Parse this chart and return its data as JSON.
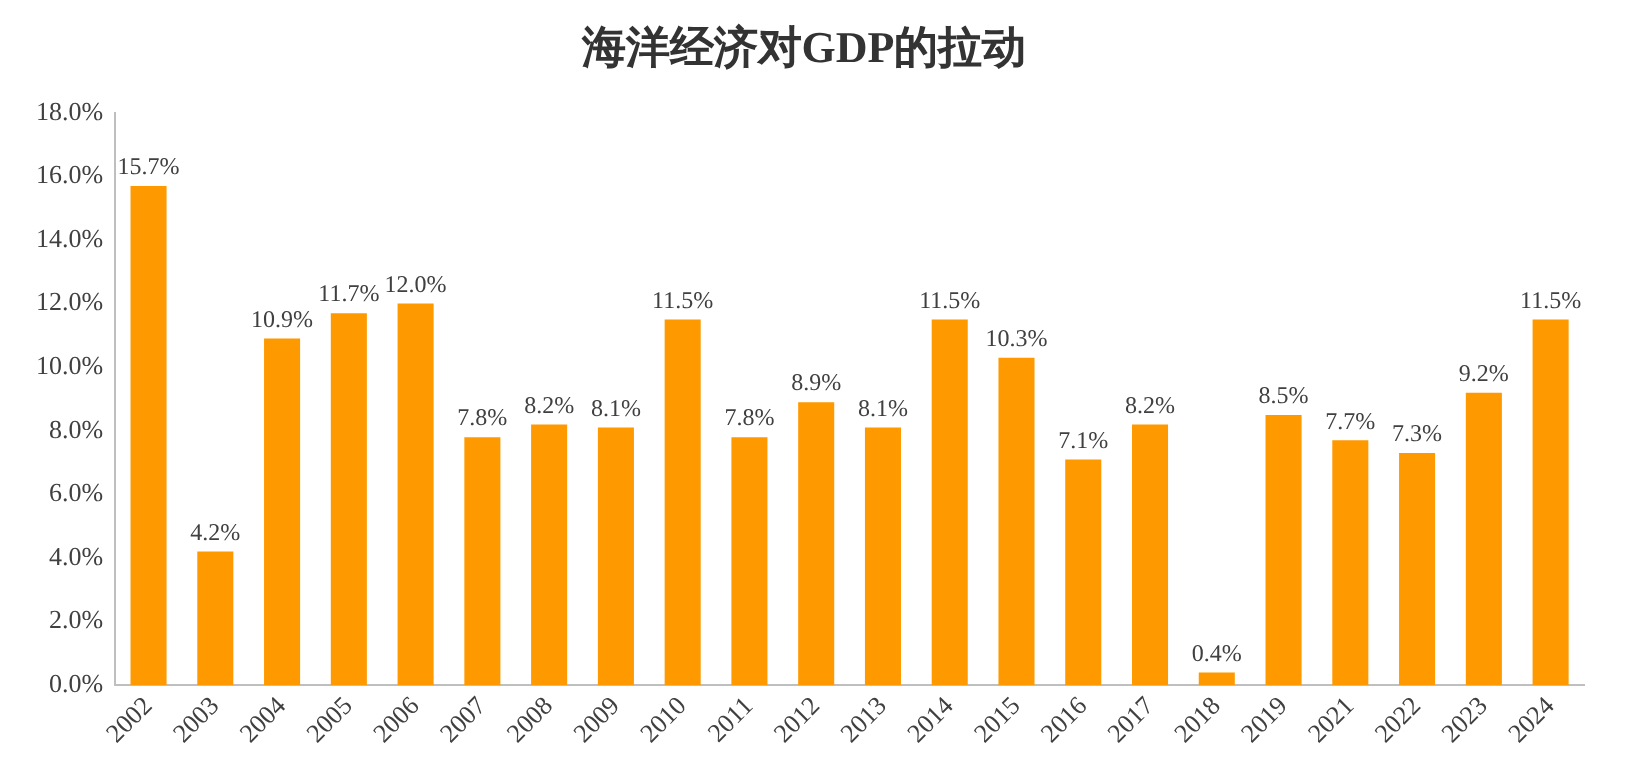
{
  "chart_data": {
    "type": "bar",
    "title": "海洋经济对GDP的拉动",
    "categories": [
      "2002",
      "2003",
      "2004",
      "2005",
      "2006",
      "2007",
      "2008",
      "2009",
      "2010",
      "2011",
      "2012",
      "2013",
      "2014",
      "2015",
      "2016",
      "2017",
      "2018",
      "2019",
      "2021",
      "2022",
      "2023",
      "2024"
    ],
    "values": [
      15.7,
      4.2,
      10.9,
      11.7,
      12.0,
      7.8,
      8.2,
      8.1,
      11.5,
      7.8,
      8.9,
      8.1,
      11.5,
      10.3,
      7.1,
      8.2,
      0.4,
      8.5,
      7.7,
      7.3,
      9.2,
      11.5
    ],
    "value_labels": [
      "15.7%",
      "4.2%",
      "10.9%",
      "11.7%",
      "12.0%",
      "7.8%",
      "8.2%",
      "8.1%",
      "11.5%",
      "7.8%",
      "8.9%",
      "8.1%",
      "11.5%",
      "10.3%",
      "7.1%",
      "8.2%",
      "0.4%",
      "8.5%",
      "7.7%",
      "7.3%",
      "9.2%",
      "11.5%"
    ],
    "color": "#ff9900",
    "ylim": [
      0,
      18
    ],
    "yticks": [
      {
        "value": 0,
        "label": "0.0%"
      },
      {
        "value": 2,
        "label": "2.0%"
      },
      {
        "value": 4,
        "label": "4.0%"
      },
      {
        "value": 6,
        "label": "6.0%"
      },
      {
        "value": 8,
        "label": "8.0%"
      },
      {
        "value": 10,
        "label": "10.0%"
      },
      {
        "value": 12,
        "label": "12.0%"
      },
      {
        "value": 14,
        "label": "14.0%"
      },
      {
        "value": 16,
        "label": "16.0%"
      },
      {
        "value": 18,
        "label": "18.0%"
      }
    ],
    "grid": false,
    "legend": false
  }
}
